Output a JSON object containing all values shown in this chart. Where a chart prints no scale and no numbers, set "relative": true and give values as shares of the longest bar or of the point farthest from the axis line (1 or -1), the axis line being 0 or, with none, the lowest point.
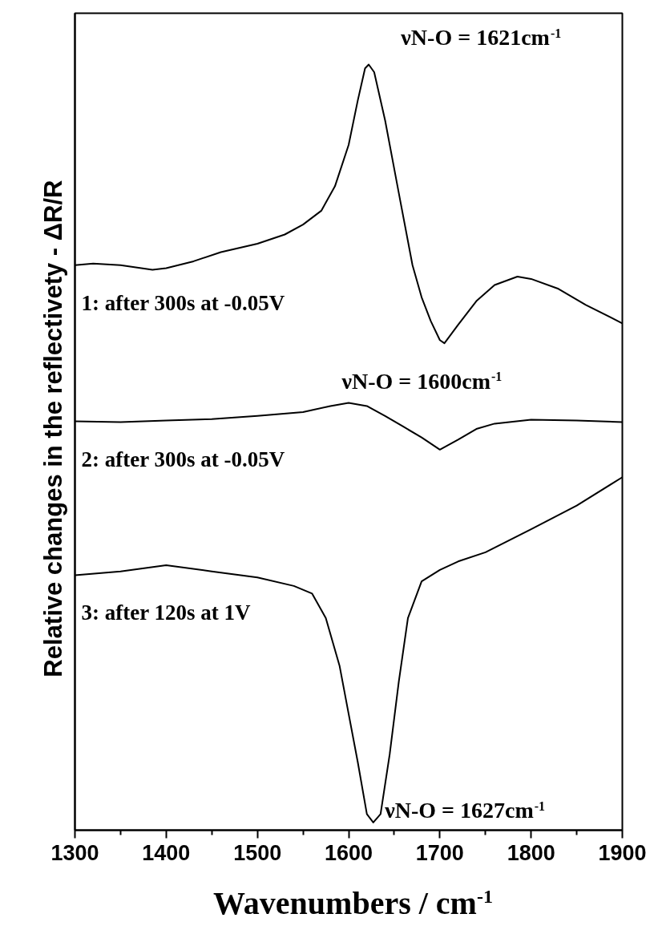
{
  "chart_data": {
    "type": "line",
    "relative": true,
    "xlabel": "Wavenumbers / cm$^{-1}$",
    "ylabel": "Relative changes in the reflectivety  -  ΔR/R",
    "xlim": [
      1300,
      1900
    ],
    "xticks": [
      1300,
      1400,
      1500,
      1600,
      1700,
      1800,
      1900
    ],
    "grid": false,
    "series": [
      {
        "name": "1: after 300s at -0.05V",
        "color": "#000000",
        "x": [
          1300,
          1320,
          1350,
          1385,
          1400,
          1430,
          1460,
          1500,
          1530,
          1550,
          1570,
          1585,
          1600,
          1610,
          1618,
          1622,
          1628,
          1640,
          1655,
          1670,
          1680,
          1690,
          1700,
          1705,
          1720,
          1740,
          1760,
          1785,
          1800,
          1830,
          1860,
          1900
        ],
        "values": [
          0.738,
          0.74,
          0.738,
          0.732,
          0.734,
          0.743,
          0.755,
          0.766,
          0.778,
          0.791,
          0.809,
          0.841,
          0.895,
          0.953,
          0.995,
          1.0,
          0.99,
          0.927,
          0.832,
          0.738,
          0.696,
          0.665,
          0.64,
          0.636,
          0.66,
          0.691,
          0.712,
          0.723,
          0.72,
          0.707,
          0.686,
          0.662
        ]
      },
      {
        "name": "2: after 300s at -0.05V",
        "color": "#000000",
        "x": [
          1300,
          1350,
          1400,
          1450,
          1500,
          1550,
          1580,
          1600,
          1620,
          1640,
          1660,
          1680,
          1700,
          1720,
          1740,
          1760,
          1800,
          1850,
          1900
        ],
        "values": [
          0.534,
          0.533,
          0.535,
          0.537,
          0.541,
          0.546,
          0.554,
          0.558,
          0.554,
          0.541,
          0.527,
          0.513,
          0.497,
          0.51,
          0.524,
          0.531,
          0.536,
          0.535,
          0.533
        ]
      },
      {
        "name": "3: after 120s at 1V",
        "color": "#000000",
        "x": [
          1300,
          1350,
          1400,
          1450,
          1500,
          1540,
          1560,
          1575,
          1590,
          1600,
          1610,
          1620,
          1627,
          1635,
          1645,
          1655,
          1665,
          1680,
          1700,
          1720,
          1750,
          1800,
          1850,
          1900
        ],
        "values": [
          0.333,
          0.338,
          0.346,
          0.338,
          0.33,
          0.319,
          0.309,
          0.277,
          0.215,
          0.152,
          0.089,
          0.021,
          0.01,
          0.021,
          0.099,
          0.194,
          0.277,
          0.325,
          0.34,
          0.351,
          0.363,
          0.393,
          0.424,
          0.461
        ]
      }
    ],
    "annotations": [
      {
        "text": "νN-O = 1621cm$^{-1}$",
        "x": 1621,
        "y": 1.0
      },
      {
        "text": "νN-O = 1600cm$^{-1}$",
        "x": 1600,
        "y": 0.558
      },
      {
        "text": "νN-O = 1627cm$^{-1}$",
        "x": 1627,
        "y": 0.01
      }
    ]
  }
}
